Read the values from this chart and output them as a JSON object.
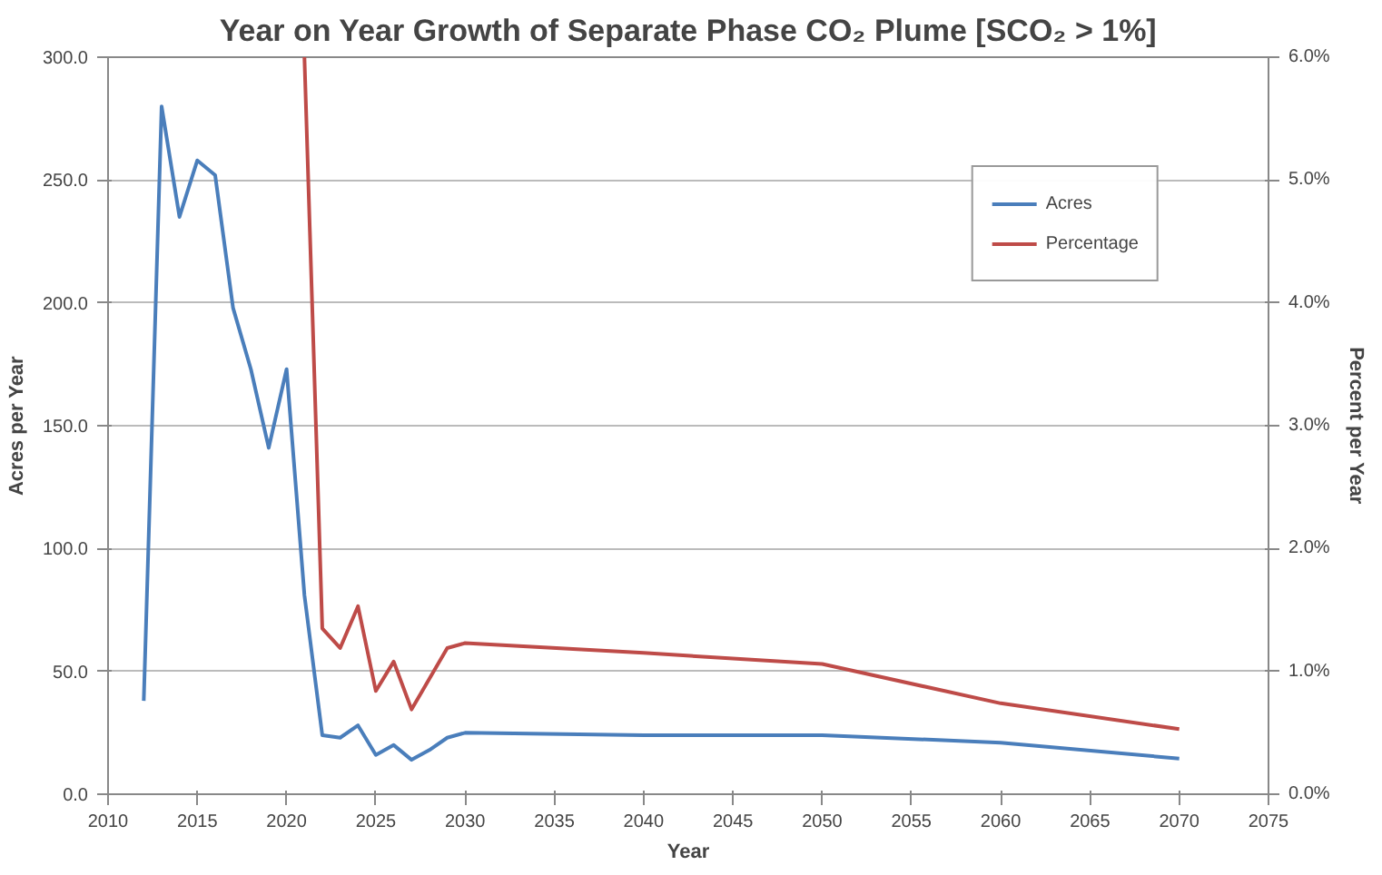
{
  "chart_data": {
    "type": "line",
    "title": "Year on Year Growth of Separate Phase CO₂ Plume [SCO₂ > 1%]",
    "xlabel": "Year",
    "ylabel": "Acres per Year",
    "y2label": "Percent per Year",
    "xlim": [
      2010,
      2075
    ],
    "xticks": [
      2010,
      2015,
      2020,
      2025,
      2030,
      2035,
      2040,
      2045,
      2050,
      2055,
      2060,
      2065,
      2070,
      2075
    ],
    "ylim": [
      0,
      300
    ],
    "yticks": [
      {
        "value": 0,
        "label": "0.0"
      },
      {
        "value": 50,
        "label": "50.0"
      },
      {
        "value": 100,
        "label": "100.0"
      },
      {
        "value": 150,
        "label": "150.0"
      },
      {
        "value": 200,
        "label": "200.0"
      },
      {
        "value": 250,
        "label": "250.0"
      },
      {
        "value": 300,
        "label": "300.0"
      }
    ],
    "y2lim": [
      0,
      6
    ],
    "y2ticks": [
      {
        "value": 0,
        "label": "0.0%"
      },
      {
        "value": 1,
        "label": "1.0%"
      },
      {
        "value": 2,
        "label": "2.0%"
      },
      {
        "value": 3,
        "label": "3.0%"
      },
      {
        "value": 4,
        "label": "4.0%"
      },
      {
        "value": 5,
        "label": "5.0%"
      },
      {
        "value": 6,
        "label": "6.0%"
      }
    ],
    "grid": "y",
    "legend": "top right",
    "marker": "none",
    "line_style": "solid",
    "series": [
      {
        "name": "Acres",
        "color": "#4a7ebb",
        "x": [
          2012,
          2013,
          2014,
          2015,
          2016,
          2017,
          2018,
          2019,
          2020,
          2021,
          2022,
          2023,
          2024,
          2025,
          2026,
          2027,
          2028,
          2029,
          2030,
          2040,
          2050,
          2060,
          2070
        ],
        "values": [
          38,
          280,
          235,
          258,
          252,
          198,
          173,
          141,
          173,
          81,
          24,
          23,
          28,
          16,
          20,
          14,
          18,
          23,
          25,
          24,
          24,
          21,
          14.5
        ]
      },
      {
        "name": "Percentage",
        "color": "#be4b48",
        "axis": "y2",
        "x": [
          2021,
          2022,
          2023,
          2024,
          2025,
          2026,
          2027,
          2028,
          2029,
          2030,
          2040,
          2050,
          2060,
          2070
        ],
        "values": [
          6.0,
          1.35,
          1.19,
          1.53,
          0.84,
          1.08,
          0.69,
          0.94,
          1.19,
          1.23,
          1.15,
          1.06,
          0.74,
          0.53
        ]
      }
    ]
  }
}
